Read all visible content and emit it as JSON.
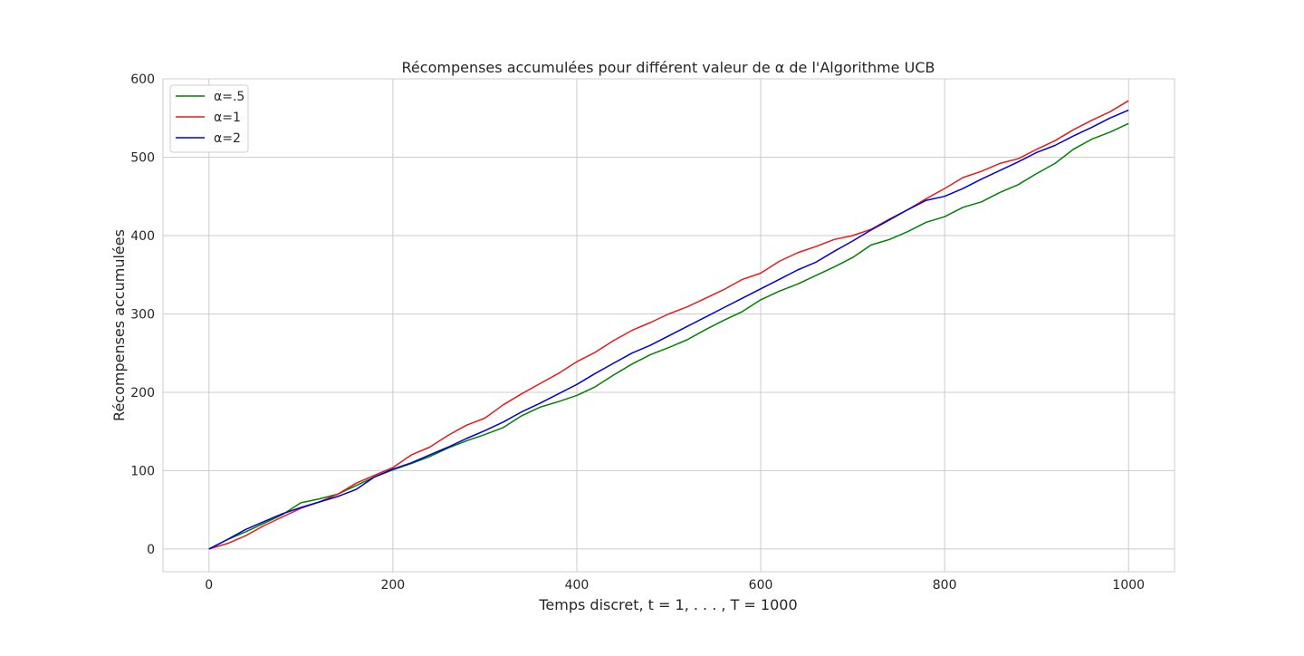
{
  "chart_data": {
    "type": "line",
    "title": "Récompenses accumulées pour différent valeur de α de l'Algorithme UCB",
    "xlabel": "Temps discret, t = 1, . . . , T = 1000",
    "ylabel": "Récompenses accumulées",
    "xlim": [
      -50,
      1050
    ],
    "ylim": [
      -29,
      600
    ],
    "xticks": [
      0,
      200,
      400,
      600,
      800,
      1000
    ],
    "yticks": [
      0,
      100,
      200,
      300,
      400,
      500,
      600
    ],
    "grid": true,
    "legend_position": "upper-left",
    "series": [
      {
        "name": "α=.5",
        "color": "#008000",
        "x": [
          0,
          20,
          40,
          60,
          80,
          100,
          120,
          140,
          160,
          180,
          200,
          220,
          240,
          260,
          280,
          300,
          320,
          340,
          360,
          380,
          400,
          420,
          440,
          460,
          480,
          500,
          520,
          540,
          560,
          580,
          600,
          620,
          640,
          660,
          680,
          700,
          720,
          740,
          760,
          780,
          800,
          820,
          840,
          860,
          880,
          900,
          920,
          940,
          960,
          980,
          1000
        ],
        "values": [
          0,
          12,
          22,
          33,
          44,
          59,
          64,
          70,
          81,
          92,
          101,
          109,
          118,
          129,
          138,
          146,
          155,
          170,
          181,
          188,
          196,
          207,
          222,
          236,
          248,
          257,
          267,
          280,
          292,
          303,
          318,
          329,
          338,
          349,
          360,
          372,
          388,
          395,
          405,
          417,
          424,
          436,
          443,
          455,
          465,
          479,
          492,
          510,
          523,
          532,
          543
        ]
      },
      {
        "name": "α=1",
        "color": "#e41a1c",
        "x": [
          0,
          20,
          40,
          60,
          80,
          100,
          120,
          140,
          160,
          180,
          200,
          220,
          240,
          260,
          280,
          300,
          320,
          340,
          360,
          380,
          400,
          420,
          440,
          460,
          480,
          500,
          520,
          540,
          560,
          580,
          600,
          620,
          640,
          660,
          680,
          700,
          720,
          740,
          760,
          780,
          800,
          820,
          840,
          860,
          880,
          900,
          920,
          940,
          960,
          980,
          1000
        ],
        "values": [
          0,
          7,
          17,
          30,
          41,
          52,
          60,
          70,
          84,
          94,
          104,
          120,
          130,
          145,
          158,
          167,
          184,
          198,
          211,
          224,
          239,
          251,
          266,
          279,
          289,
          300,
          309,
          320,
          331,
          344,
          352,
          367,
          378,
          386,
          395,
          400,
          408,
          421,
          433,
          447,
          460,
          474,
          482,
          492,
          498,
          510,
          521,
          535,
          547,
          558,
          572
        ]
      },
      {
        "name": "α=2",
        "color": "#0000cc",
        "x": [
          0,
          20,
          40,
          60,
          80,
          100,
          120,
          140,
          160,
          180,
          200,
          220,
          240,
          260,
          280,
          300,
          320,
          340,
          360,
          380,
          400,
          420,
          440,
          460,
          480,
          500,
          520,
          540,
          560,
          580,
          600,
          620,
          640,
          660,
          680,
          700,
          720,
          740,
          760,
          780,
          800,
          820,
          840,
          860,
          880,
          900,
          920,
          940,
          960,
          980,
          1000
        ],
        "values": [
          0,
          12,
          25,
          35,
          45,
          53,
          60,
          67,
          76,
          92,
          102,
          110,
          120,
          130,
          141,
          151,
          162,
          175,
          186,
          198,
          210,
          224,
          237,
          250,
          260,
          272,
          284,
          296,
          308,
          320,
          332,
          344,
          356,
          366,
          380,
          393,
          407,
          420,
          433,
          445,
          450,
          460,
          472,
          483,
          494,
          506,
          515,
          527,
          538,
          550,
          560
        ]
      }
    ]
  }
}
